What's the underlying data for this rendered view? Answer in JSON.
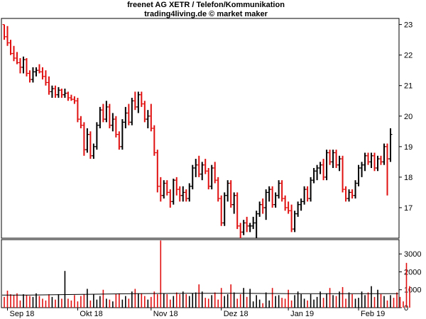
{
  "chart_data": {
    "type": "bar",
    "title": "freenet AG XETR / Telefon/Kommunikation",
    "subtitle": "trading4living.de © market maker",
    "price_axis": {
      "ticks": [
        17,
        18,
        19,
        20,
        21,
        22,
        23
      ],
      "ylim": [
        16.0,
        23.2
      ]
    },
    "volume_axis": {
      "ticks": [
        0,
        1000,
        2000,
        3000
      ],
      "ylim": [
        0,
        3800
      ]
    },
    "x_labels": [
      {
        "label": "Sep 18",
        "index": 1
      },
      {
        "label": "Okt 18",
        "index": 23
      },
      {
        "label": "Nov 18",
        "index": 46
      },
      {
        "label": "Dez 18",
        "index": 68
      },
      {
        "label": "Jan 19",
        "index": 89
      },
      {
        "label": "Feb 19",
        "index": 111
      }
    ],
    "colors": {
      "up": "#000000",
      "down": "#e01010",
      "volume_avg": "#000000"
    },
    "ohlc": [
      [
        23.0,
        23.0,
        22.5,
        22.6
      ],
      [
        22.6,
        22.95,
        22.3,
        22.4
      ],
      [
        22.4,
        22.5,
        22.0,
        22.05
      ],
      [
        22.05,
        22.3,
        21.8,
        21.9
      ],
      [
        21.9,
        22.1,
        21.7,
        21.75
      ],
      [
        21.75,
        21.9,
        21.4,
        21.6
      ],
      [
        21.6,
        21.95,
        21.4,
        21.85
      ],
      [
        21.85,
        21.9,
        21.3,
        21.4
      ],
      [
        21.4,
        21.5,
        21.1,
        21.2
      ],
      [
        21.2,
        21.6,
        21.1,
        21.45
      ],
      [
        21.45,
        21.6,
        21.3,
        21.5
      ],
      [
        21.5,
        21.7,
        21.4,
        21.45
      ],
      [
        21.45,
        21.6,
        21.2,
        21.3
      ],
      [
        21.3,
        21.5,
        21.0,
        21.1
      ],
      [
        21.1,
        21.3,
        20.7,
        20.8
      ],
      [
        20.8,
        21.0,
        20.6,
        20.9
      ],
      [
        20.9,
        21.0,
        20.6,
        20.7
      ],
      [
        20.7,
        20.95,
        20.6,
        20.85
      ],
      [
        20.85,
        20.9,
        20.6,
        20.7
      ],
      [
        20.7,
        20.9,
        20.6,
        20.75
      ],
      [
        20.75,
        20.8,
        20.5,
        20.6
      ],
      [
        20.6,
        20.7,
        20.5,
        20.55
      ],
      [
        20.55,
        20.65,
        20.4,
        20.5
      ],
      [
        20.5,
        20.6,
        19.8,
        19.9
      ],
      [
        19.9,
        20.0,
        19.6,
        19.7
      ],
      [
        19.7,
        19.8,
        18.7,
        18.9
      ],
      [
        18.9,
        19.6,
        18.8,
        19.4
      ],
      [
        19.4,
        19.5,
        18.6,
        18.7
      ],
      [
        18.7,
        19.1,
        18.6,
        19.0
      ],
      [
        19.0,
        19.8,
        18.9,
        19.7
      ],
      [
        19.7,
        20.3,
        19.6,
        20.2
      ],
      [
        20.2,
        20.4,
        19.8,
        19.9
      ],
      [
        19.9,
        20.5,
        19.8,
        20.3
      ],
      [
        20.3,
        20.4,
        19.6,
        19.7
      ],
      [
        19.7,
        20.1,
        19.5,
        19.9
      ],
      [
        19.9,
        20.0,
        19.3,
        19.4
      ],
      [
        19.4,
        19.5,
        18.9,
        19.0
      ],
      [
        19.0,
        19.9,
        18.9,
        19.8
      ],
      [
        19.8,
        20.3,
        19.6,
        20.1
      ],
      [
        20.1,
        20.4,
        19.7,
        19.8
      ],
      [
        19.8,
        20.6,
        19.7,
        20.5
      ],
      [
        20.5,
        20.8,
        20.2,
        20.3
      ],
      [
        20.3,
        20.8,
        20.1,
        20.7
      ],
      [
        20.7,
        20.8,
        20.3,
        20.4
      ],
      [
        20.4,
        20.5,
        19.8,
        19.9
      ],
      [
        19.9,
        20.2,
        19.6,
        20.0
      ],
      [
        20.0,
        20.4,
        19.5,
        19.6
      ],
      [
        19.6,
        19.7,
        18.7,
        18.8
      ],
      [
        18.8,
        18.9,
        17.5,
        17.7
      ],
      [
        17.7,
        18.0,
        17.2,
        17.4
      ],
      [
        17.4,
        17.9,
        17.3,
        17.8
      ],
      [
        17.8,
        17.9,
        17.4,
        17.5
      ],
      [
        17.5,
        17.6,
        17.0,
        17.2
      ],
      [
        17.2,
        17.95,
        17.1,
        17.9
      ],
      [
        17.9,
        18.0,
        17.4,
        17.6
      ],
      [
        17.6,
        17.7,
        17.2,
        17.4
      ],
      [
        17.4,
        17.7,
        17.2,
        17.5
      ],
      [
        17.5,
        17.6,
        17.2,
        17.3
      ],
      [
        17.3,
        17.8,
        17.2,
        17.7
      ],
      [
        17.7,
        18.4,
        17.6,
        18.3
      ],
      [
        18.3,
        18.6,
        18.0,
        18.4
      ],
      [
        18.4,
        18.7,
        18.0,
        18.1
      ],
      [
        18.1,
        18.5,
        17.9,
        18.4
      ],
      [
        18.4,
        18.6,
        18.1,
        18.2
      ],
      [
        18.2,
        18.3,
        17.6,
        17.7
      ],
      [
        17.7,
        18.4,
        17.6,
        18.3
      ],
      [
        18.3,
        18.5,
        17.8,
        17.9
      ],
      [
        17.9,
        18.0,
        17.2,
        17.3
      ],
      [
        17.3,
        17.4,
        16.4,
        16.5
      ],
      [
        16.5,
        17.5,
        16.4,
        17.4
      ],
      [
        17.4,
        17.9,
        17.2,
        17.8
      ],
      [
        17.8,
        17.9,
        17.0,
        17.1
      ],
      [
        17.1,
        17.5,
        16.8,
        17.4
      ],
      [
        17.4,
        17.5,
        16.3,
        16.4
      ],
      [
        16.4,
        16.5,
        16.0,
        16.2
      ],
      [
        16.2,
        16.6,
        16.1,
        16.5
      ],
      [
        16.5,
        16.7,
        16.2,
        16.4
      ],
      [
        16.4,
        16.5,
        16.2,
        16.4
      ],
      [
        16.4,
        16.7,
        16.3,
        16.5
      ],
      [
        16.5,
        16.9,
        16.0,
        16.8
      ],
      [
        16.8,
        17.2,
        16.7,
        17.1
      ],
      [
        17.1,
        17.3,
        16.8,
        17.0
      ],
      [
        17.0,
        17.6,
        16.6,
        17.5
      ],
      [
        17.5,
        17.7,
        17.2,
        17.6
      ],
      [
        17.6,
        17.7,
        17.0,
        17.1
      ],
      [
        17.1,
        17.5,
        17.0,
        17.4
      ],
      [
        17.4,
        17.9,
        17.3,
        17.8
      ],
      [
        17.8,
        17.9,
        17.2,
        17.3
      ],
      [
        17.3,
        17.4,
        16.9,
        17.0
      ],
      [
        17.0,
        17.2,
        16.8,
        16.9
      ],
      [
        16.9,
        17.1,
        16.2,
        16.3
      ],
      [
        16.3,
        16.9,
        16.2,
        16.8
      ],
      [
        16.8,
        17.2,
        16.7,
        17.1
      ],
      [
        17.1,
        17.3,
        16.9,
        17.2
      ],
      [
        17.2,
        17.7,
        17.1,
        17.6
      ],
      [
        17.6,
        17.7,
        17.2,
        17.3
      ],
      [
        17.3,
        18.0,
        17.2,
        17.9
      ],
      [
        17.9,
        18.3,
        17.8,
        18.2
      ],
      [
        18.2,
        18.4,
        17.9,
        18.3
      ],
      [
        18.3,
        18.5,
        18.1,
        18.4
      ],
      [
        18.4,
        18.6,
        17.9,
        18.0
      ],
      [
        18.0,
        18.9,
        17.9,
        18.8
      ],
      [
        18.8,
        18.9,
        18.4,
        18.5
      ],
      [
        18.5,
        18.9,
        18.3,
        18.8
      ],
      [
        18.8,
        18.9,
        18.3,
        18.4
      ],
      [
        18.4,
        18.7,
        18.2,
        18.6
      ],
      [
        18.6,
        18.7,
        17.5,
        17.6
      ],
      [
        17.6,
        17.7,
        17.2,
        17.3
      ],
      [
        17.3,
        17.6,
        17.2,
        17.5
      ],
      [
        17.5,
        17.6,
        17.3,
        17.4
      ],
      [
        17.4,
        17.9,
        17.3,
        17.8
      ],
      [
        17.8,
        18.4,
        17.7,
        18.3
      ],
      [
        18.3,
        18.5,
        18.0,
        18.4
      ],
      [
        18.4,
        18.8,
        18.2,
        18.7
      ],
      [
        18.7,
        18.8,
        18.4,
        18.5
      ],
      [
        18.5,
        18.8,
        18.3,
        18.7
      ],
      [
        18.7,
        18.8,
        18.2,
        18.3
      ],
      [
        18.3,
        18.7,
        18.2,
        18.6
      ],
      [
        18.6,
        18.7,
        18.4,
        18.5
      ],
      [
        18.5,
        19.1,
        18.4,
        19.0
      ],
      [
        19.0,
        19.1,
        17.4,
        18.6
      ],
      [
        18.6,
        19.6,
        18.5,
        19.4
      ]
    ],
    "volume": [
      600,
      950,
      750,
      700,
      800,
      400,
      750,
      700,
      650,
      600,
      800,
      650,
      500,
      400,
      750,
      600,
      450,
      750,
      500,
      2050,
      500,
      400,
      700,
      350,
      650,
      750,
      1050,
      400,
      750,
      450,
      650,
      1000,
      500,
      450,
      350,
      750,
      800,
      450,
      650,
      500,
      900,
      1050,
      800,
      800,
      650,
      450,
      600,
      900,
      750,
      3750,
      800,
      750,
      450,
      650,
      850,
      750,
      900,
      750,
      650,
      800,
      850,
      1300,
      900,
      550,
      500,
      700,
      850,
      450,
      1100,
      650,
      750,
      1300,
      850,
      500,
      750,
      1100,
      600,
      1050,
      350,
      700,
      450,
      250,
      850,
      400,
      1100,
      650,
      700,
      550,
      500,
      1000,
      400,
      700,
      900,
      750,
      500,
      400,
      750,
      450,
      600,
      900,
      550,
      800,
      1100,
      700,
      650,
      900,
      1150,
      500,
      850,
      750,
      500,
      550,
      900,
      700,
      850,
      1200,
      600,
      1000,
      750,
      650,
      400,
      700,
      550,
      850,
      600,
      350,
      2500,
      1200
    ],
    "volume_avg": [
      700,
      700,
      720,
      740,
      760,
      780,
      790,
      800,
      800,
      800,
      790,
      780,
      780,
      780,
      780,
      780
    ]
  }
}
